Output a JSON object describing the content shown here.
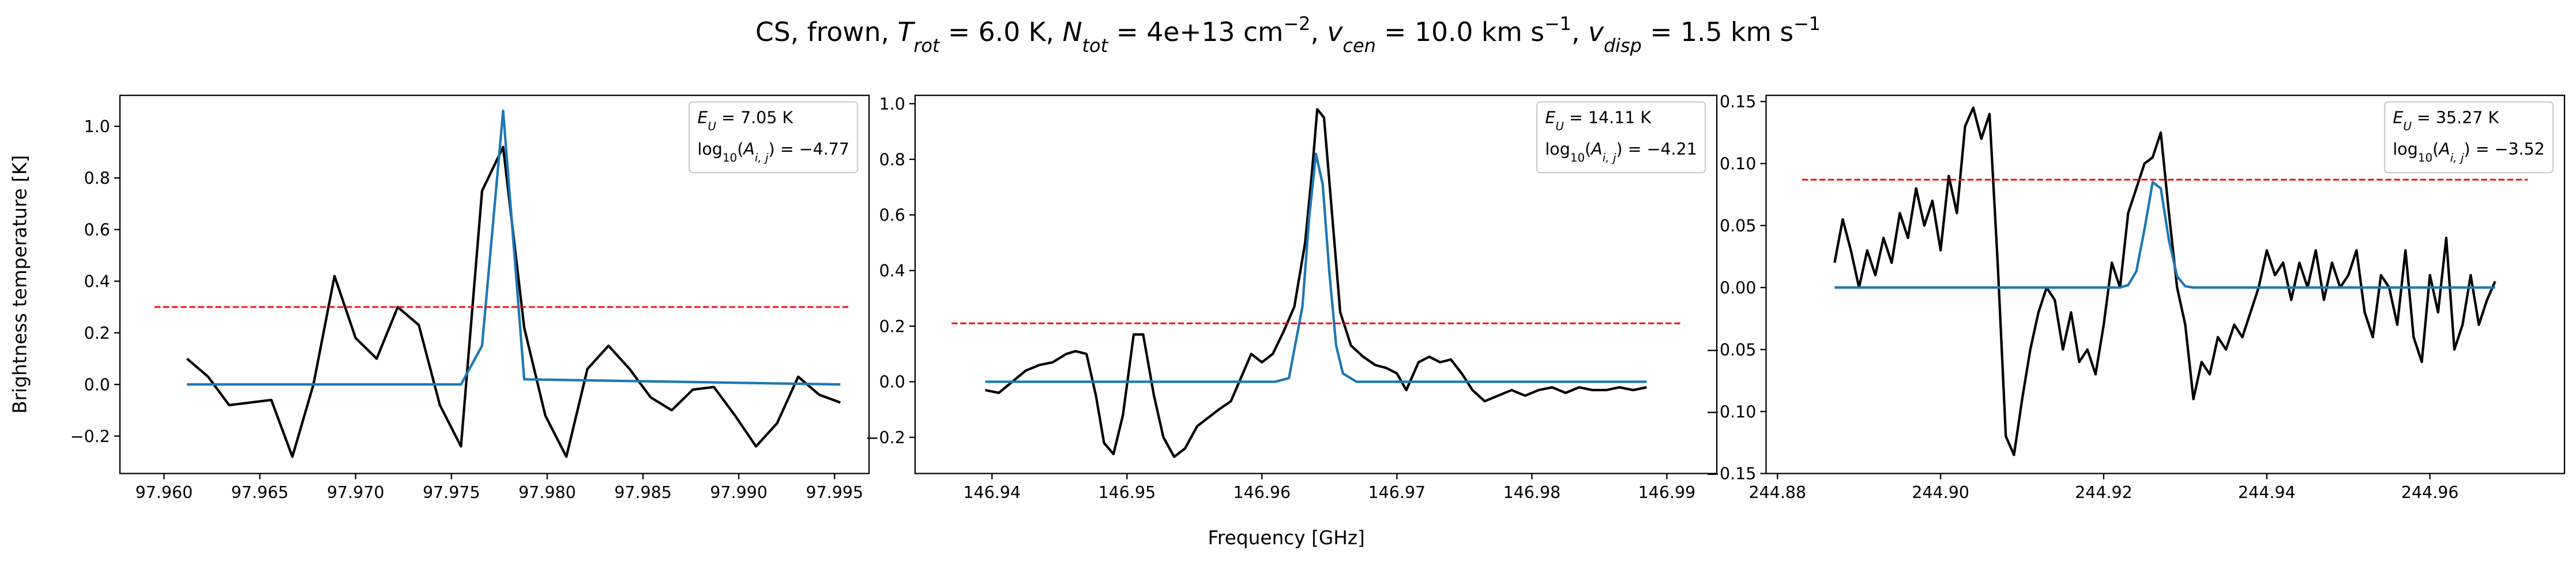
{
  "title": [
    {
      "text": "CS, frown, "
    },
    {
      "text": "T",
      "italic": true
    },
    {
      "text": "rot",
      "sub": true,
      "italic": true
    },
    {
      "text": " =  6.0 K, "
    },
    {
      "text": "N",
      "italic": true
    },
    {
      "text": "tot",
      "sub": true,
      "italic": true
    },
    {
      "text": " =  4e+13 cm"
    },
    {
      "text": "−2",
      "sup": true
    },
    {
      "text": ", "
    },
    {
      "text": "v",
      "italic": true
    },
    {
      "text": "cen",
      "sub": true,
      "italic": true
    },
    {
      "text": " =  10.0 km s"
    },
    {
      "text": "−1",
      "sup": true
    },
    {
      "text": ", "
    },
    {
      "text": "v",
      "italic": true
    },
    {
      "text": "disp",
      "sub": true,
      "italic": true
    },
    {
      "text": " =  1.5 km s"
    },
    {
      "text": "−1",
      "sup": true
    }
  ],
  "x_label": "Frequency [GHz]",
  "y_label": "Brightness temperature [K]",
  "chart_data": [
    {
      "type": "line",
      "xlim": [
        97.9577,
        97.9968
      ],
      "ylim": [
        -0.345,
        1.12
      ],
      "xticks": [
        {
          "value": 97.96,
          "label": "97.960"
        },
        97.965,
        {
          "value": 97.97,
          "label": "97.970"
        },
        97.975,
        {
          "value": 97.98,
          "label": "97.980"
        },
        97.985,
        {
          "value": 97.99,
          "label": "97.990"
        },
        97.995
      ],
      "yticks": [
        {
          "value": -0.2,
          "label": "−0.2"
        },
        {
          "value": 0,
          "label": "0.0"
        },
        0.2,
        0.4,
        0.6,
        0.8,
        {
          "value": 1,
          "label": "1.0"
        }
      ],
      "annotations": [
        [
          {
            "text": "E",
            "italic": true
          },
          {
            "text": "U",
            "sub": true,
            "italic": true
          },
          {
            "text": " = 7.05 K"
          }
        ],
        [
          {
            "text": "log"
          },
          {
            "text": "10",
            "sub": true
          },
          {
            "text": "("
          },
          {
            "text": "A",
            "italic": true
          },
          {
            "text": "i, j",
            "sub": true,
            "italic": true
          },
          {
            "text": ") = −4.77"
          }
        ]
      ],
      "series": [
        {
          "color": "#000000",
          "x": [
            97.9612,
            97.9623,
            97.9634,
            97.9645,
            97.9656,
            97.9667,
            97.9678,
            97.9689,
            97.97,
            97.9711,
            97.9722,
            97.9733,
            97.9744,
            97.9755,
            97.9766,
            97.9777,
            97.9788,
            97.9799,
            97.981,
            97.9821,
            97.9832,
            97.9843,
            97.9854,
            97.9865,
            97.9876,
            97.9887,
            97.9898,
            97.9909,
            97.992,
            97.9931,
            97.9942,
            97.9953
          ],
          "values": [
            0.1,
            0.03,
            -0.08,
            -0.07,
            -0.06,
            -0.28,
            0.0,
            0.42,
            0.18,
            0.1,
            0.3,
            0.23,
            -0.08,
            -0.24,
            0.75,
            0.92,
            0.22,
            -0.12,
            -0.28,
            0.06,
            0.15,
            0.06,
            -0.05,
            -0.1,
            -0.02,
            -0.01,
            -0.12,
            -0.24,
            -0.15,
            0.03,
            -0.04,
            -0.07
          ]
        },
        {
          "color": "#1f77b4",
          "x": [
            97.9612,
            97.9755,
            97.9766,
            97.9777,
            97.9788,
            97.9953
          ],
          "values": [
            0,
            0,
            0.15,
            1.06,
            0.02,
            0
          ]
        },
        {
          "color": "#ff0000",
          "dashed": true,
          "x": [
            97.9595,
            97.9958
          ],
          "values": [
            0.3,
            0.3
          ]
        }
      ]
    },
    {
      "type": "line",
      "xlim": [
        146.9343,
        146.9937
      ],
      "ylim": [
        -0.33,
        1.03
      ],
      "xticks": [
        146.94,
        146.95,
        146.96,
        146.97,
        146.98,
        146.99
      ],
      "yticks": [
        {
          "value": -0.2,
          "label": "−0.2"
        },
        {
          "value": 0,
          "label": "0.0"
        },
        0.2,
        0.4,
        0.6,
        0.8,
        {
          "value": 1,
          "label": "1.0"
        }
      ],
      "annotations": [
        [
          {
            "text": "E",
            "italic": true
          },
          {
            "text": "U",
            "sub": true,
            "italic": true
          },
          {
            "text": " = 14.11 K"
          }
        ],
        [
          {
            "text": "log"
          },
          {
            "text": "10",
            "sub": true
          },
          {
            "text": "("
          },
          {
            "text": "A",
            "italic": true
          },
          {
            "text": "i, j",
            "sub": true,
            "italic": true
          },
          {
            "text": ") = −4.21"
          }
        ]
      ],
      "series": [
        {
          "color": "#000000",
          "x": [
            146.9395,
            146.9405,
            146.9415,
            146.9425,
            146.9435,
            146.9445,
            146.9455,
            146.9462,
            146.947,
            146.9477,
            146.9483,
            146.949,
            146.9497,
            146.9505,
            146.9512,
            146.952,
            146.9527,
            146.9535,
            146.9543,
            146.9552,
            146.956,
            146.9568,
            146.9577,
            146.9585,
            146.9592,
            146.96,
            146.9608,
            146.9616,
            146.9624,
            146.9632,
            146.9637,
            146.9641,
            146.9646,
            146.9652,
            146.9658,
            146.9666,
            146.9675,
            146.9684,
            146.9692,
            146.97,
            146.9707,
            146.9716,
            146.9724,
            146.9732,
            146.974,
            146.9748,
            146.9756,
            146.9765,
            146.9775,
            146.9785,
            146.9795,
            146.9805,
            146.9815,
            146.9825,
            146.9835,
            146.9845,
            146.9855,
            146.9865,
            146.9875,
            146.9885
          ],
          "values": [
            -0.03,
            -0.04,
            0.0,
            0.04,
            0.06,
            0.07,
            0.1,
            0.11,
            0.1,
            -0.05,
            -0.22,
            -0.26,
            -0.12,
            0.17,
            0.17,
            -0.05,
            -0.2,
            -0.27,
            -0.24,
            -0.16,
            -0.13,
            -0.1,
            -0.07,
            0.02,
            0.1,
            0.07,
            0.1,
            0.18,
            0.27,
            0.5,
            0.75,
            0.98,
            0.95,
            0.6,
            0.25,
            0.13,
            0.09,
            0.06,
            0.05,
            0.03,
            -0.03,
            0.07,
            0.09,
            0.07,
            0.08,
            0.03,
            -0.03,
            -0.07,
            -0.05,
            -0.03,
            -0.05,
            -0.03,
            -0.02,
            -0.04,
            -0.02,
            -0.03,
            -0.03,
            -0.02,
            -0.03,
            -0.02
          ]
        },
        {
          "color": "#1f77b4",
          "x": [
            146.9395,
            146.961,
            146.962,
            146.963,
            146.9635,
            146.964,
            146.9645,
            146.965,
            146.9655,
            146.966,
            146.967,
            146.9885
          ],
          "values": [
            0,
            0,
            0.013,
            0.27,
            0.59,
            0.82,
            0.71,
            0.39,
            0.13,
            0.03,
            0,
            0
          ]
        },
        {
          "color": "#ff0000",
          "dashed": true,
          "x": [
            146.937,
            146.991
          ],
          "values": [
            0.21,
            0.21
          ]
        }
      ]
    },
    {
      "type": "line",
      "xlim": [
        244.8786,
        244.9765
      ],
      "ylim": [
        -0.15,
        0.155
      ],
      "xticks": [
        244.88,
        {
          "value": 244.9,
          "label": "244.90"
        },
        244.92,
        244.94,
        244.96
      ],
      "yticks": [
        {
          "value": -0.15,
          "label": "−0.15"
        },
        {
          "value": -0.1,
          "label": "−0.10"
        },
        {
          "value": -0.05,
          "label": "−0.05"
        },
        {
          "value": 0,
          "label": "0.00"
        },
        0.05,
        {
          "value": 0.1,
          "label": "0.10"
        },
        0.15
      ],
      "annotations": [
        [
          {
            "text": "E",
            "italic": true
          },
          {
            "text": "U",
            "sub": true,
            "italic": true
          },
          {
            "text": " = 35.27 K"
          }
        ],
        [
          {
            "text": "log"
          },
          {
            "text": "10",
            "sub": true
          },
          {
            "text": "("
          },
          {
            "text": "A",
            "italic": true
          },
          {
            "text": "i, j",
            "sub": true,
            "italic": true
          },
          {
            "text": ") = −3.52"
          }
        ]
      ],
      "series": [
        {
          "color": "#000000",
          "x": [
            244.887,
            244.888,
            244.889,
            244.89,
            244.891,
            244.892,
            244.893,
            244.894,
            244.895,
            244.896,
            244.897,
            244.898,
            244.899,
            244.9,
            244.901,
            244.902,
            244.903,
            244.904,
            244.905,
            244.906,
            244.907,
            244.908,
            244.909,
            244.91,
            244.911,
            244.912,
            244.913,
            244.914,
            244.915,
            244.916,
            244.917,
            244.918,
            244.919,
            244.92,
            244.921,
            244.922,
            244.923,
            244.924,
            244.925,
            244.926,
            244.927,
            244.928,
            244.929,
            244.93,
            244.931,
            244.932,
            244.933,
            244.934,
            244.935,
            244.936,
            244.937,
            244.938,
            244.939,
            244.94,
            244.941,
            244.942,
            244.943,
            244.944,
            244.945,
            244.946,
            244.947,
            244.948,
            244.949,
            244.95,
            244.951,
            244.952,
            244.953,
            244.954,
            244.955,
            244.956,
            244.957,
            244.958,
            244.959,
            244.96,
            244.961,
            244.962,
            244.963,
            244.964,
            244.965,
            244.966,
            244.967,
            244.968
          ],
          "values": [
            0.02,
            0.055,
            0.03,
            0.0,
            0.03,
            0.01,
            0.04,
            0.02,
            0.06,
            0.04,
            0.08,
            0.05,
            0.07,
            0.03,
            0.09,
            0.06,
            0.13,
            0.145,
            0.12,
            0.14,
            0.02,
            -0.12,
            -0.135,
            -0.09,
            -0.05,
            -0.02,
            0.0,
            -0.01,
            -0.05,
            -0.02,
            -0.06,
            -0.05,
            -0.07,
            -0.03,
            0.02,
            0.0,
            0.06,
            0.08,
            0.1,
            0.105,
            0.125,
            0.06,
            0.0,
            -0.03,
            -0.09,
            -0.06,
            -0.07,
            -0.04,
            -0.05,
            -0.03,
            -0.04,
            -0.02,
            0.0,
            0.03,
            0.01,
            0.02,
            -0.01,
            0.02,
            0.0,
            0.03,
            -0.01,
            0.02,
            0.0,
            0.01,
            0.03,
            -0.02,
            -0.04,
            0.01,
            0.0,
            -0.03,
            0.03,
            -0.04,
            -0.06,
            0.01,
            -0.02,
            0.04,
            -0.05,
            -0.03,
            0.01,
            -0.03,
            -0.01,
            0.005
          ]
        },
        {
          "color": "#1f77b4",
          "x": [
            244.887,
            244.922,
            244.923,
            244.924,
            244.925,
            244.926,
            244.927,
            244.928,
            244.929,
            244.93,
            244.931,
            244.932,
            244.968
          ],
          "values": [
            0,
            0,
            0.002,
            0.013,
            0.047,
            0.085,
            0.08,
            0.038,
            0.009,
            0.001,
            0,
            0,
            0
          ]
        },
        {
          "color": "#ff0000",
          "dashed": true,
          "x": [
            244.883,
            244.972
          ],
          "values": [
            0.087,
            0.087
          ]
        }
      ]
    }
  ]
}
